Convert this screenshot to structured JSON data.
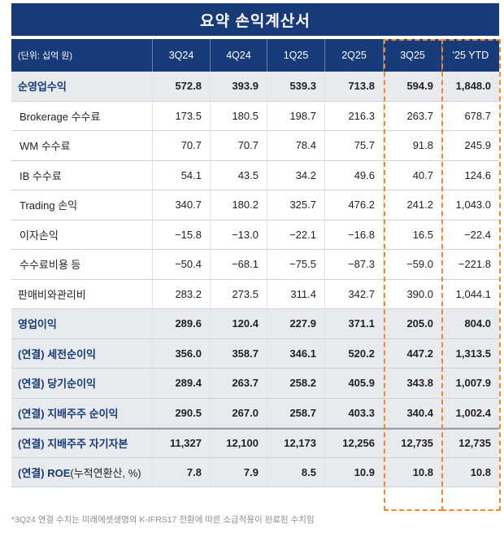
{
  "title": "요약 손익계산서",
  "header": {
    "unit_label": "(단위: 십억 원)",
    "columns": [
      "3Q24",
      "4Q24",
      "1Q25",
      "2Q25",
      "3Q25",
      "'25 YTD"
    ]
  },
  "rows": [
    {
      "label": "순영업수익",
      "values": [
        "572.8",
        "393.9",
        "539.3",
        "713.8",
        "594.9",
        "1,848.0"
      ]
    },
    {
      "label": "Brokerage 수수료",
      "values": [
        "173.5",
        "180.5",
        "198.7",
        "216.3",
        "263.7",
        "678.7"
      ]
    },
    {
      "label": "WM 수수료",
      "values": [
        "70.7",
        "70.7",
        "78.4",
        "75.7",
        "91.8",
        "245.9"
      ]
    },
    {
      "label": "IB 수수료",
      "values": [
        "54.1",
        "43.5",
        "34.2",
        "49.6",
        "40.7",
        "124.6"
      ]
    },
    {
      "label": "Trading 손익",
      "values": [
        "340.7",
        "180.2",
        "325.7",
        "476.2",
        "241.2",
        "1,043.0"
      ]
    },
    {
      "label": "이자손익",
      "values": [
        "−15.8",
        "−13.0",
        "−22.1",
        "−16.8",
        "16.5",
        "−22.4"
      ]
    },
    {
      "label": "수수료비용 등",
      "values": [
        "−50.4",
        "−68.1",
        "−75.5",
        "−87.3",
        "−59.0",
        "−221.8"
      ]
    },
    {
      "label": "판매비와관리비",
      "values": [
        "283.2",
        "273.5",
        "311.4",
        "342.7",
        "390.0",
        "1,044.1"
      ]
    },
    {
      "label": "영업이익",
      "values": [
        "289.6",
        "120.4",
        "227.9",
        "371.1",
        "205.0",
        "804.0"
      ]
    },
    {
      "label": "(연결) 세전순이익",
      "values": [
        "356.0",
        "358.7",
        "346.1",
        "520.2",
        "447.2",
        "1,313.5"
      ]
    },
    {
      "label": "(연결) 당기순이익",
      "values": [
        "289.4",
        "263.7",
        "258.2",
        "405.9",
        "343.8",
        "1,007.9"
      ]
    },
    {
      "label": "(연결) 지배주주 순이익",
      "values": [
        "290.5",
        "267.0",
        "258.7",
        "403.3",
        "340.4",
        "1,002.4"
      ]
    },
    {
      "label": "(연결) 지배주주 자기자본",
      "values": [
        "11,327",
        "12,100",
        "12,173",
        "12,256",
        "12,735",
        "12,735"
      ]
    },
    {
      "label": "(연결) ROE",
      "label_suffix": "(누적연환산, %)",
      "values": [
        "7.8",
        "7.9",
        "8.5",
        "10.9",
        "10.8",
        "10.8"
      ]
    }
  ],
  "footnote": "*3Q24 연결 수치는 미래에셋생명의 K-IFRS17 전환에 따른 소급적용이 완료된 수치임",
  "colors": {
    "header_bg": "#163a7a",
    "highlight_border": "#ee8a2a",
    "shaded_row": "#e8eaee"
  }
}
